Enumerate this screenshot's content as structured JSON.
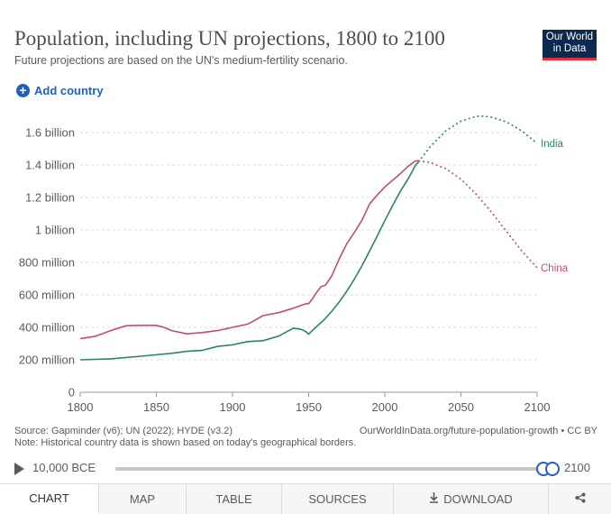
{
  "header": {
    "title": "Population, including UN projections, 1800 to 2100",
    "subtitle": "Future projections are based on the UN's medium-fertility scenario.",
    "logo_line1": "Our World",
    "logo_line2": "in Data"
  },
  "controls": {
    "add_country": "Add country",
    "add_icon": "plus-circle-icon"
  },
  "chart_data": {
    "type": "line",
    "title": "Population, including UN projections, 1800 to 2100",
    "xlabel": "",
    "ylabel": "",
    "xlim": [
      1800,
      2100
    ],
    "ylim": [
      0,
      1700
    ],
    "unit": "million",
    "grid": true,
    "x_ticks": [
      {
        "value": 1800,
        "label": "1800"
      },
      {
        "value": 1850,
        "label": "1850"
      },
      {
        "value": 1900,
        "label": "1900"
      },
      {
        "value": 1950,
        "label": "1950"
      },
      {
        "value": 2000,
        "label": "2000"
      },
      {
        "value": 2050,
        "label": "2050"
      },
      {
        "value": 2100,
        "label": "2100"
      }
    ],
    "y_ticks": [
      {
        "value": 0,
        "label": "0"
      },
      {
        "value": 200,
        "label": "200 million"
      },
      {
        "value": 400,
        "label": "400 million"
      },
      {
        "value": 600,
        "label": "600 million"
      },
      {
        "value": 800,
        "label": "800 million"
      },
      {
        "value": 1000,
        "label": "1 billion"
      },
      {
        "value": 1200,
        "label": "1.2 billion"
      },
      {
        "value": 1400,
        "label": "1.4 billion"
      },
      {
        "value": 1600,
        "label": "1.6 billion"
      }
    ],
    "series": [
      {
        "name": "China",
        "color": "#c15065",
        "historical": [
          [
            1800,
            330
          ],
          [
            1810,
            345
          ],
          [
            1820,
            380
          ],
          [
            1830,
            410
          ],
          [
            1840,
            412
          ],
          [
            1850,
            412
          ],
          [
            1855,
            400
          ],
          [
            1860,
            380
          ],
          [
            1870,
            360
          ],
          [
            1880,
            368
          ],
          [
            1890,
            380
          ],
          [
            1900,
            400
          ],
          [
            1910,
            420
          ],
          [
            1913,
            435
          ],
          [
            1920,
            472
          ],
          [
            1930,
            490
          ],
          [
            1940,
            518
          ],
          [
            1948,
            545
          ],
          [
            1950,
            546
          ],
          [
            1952,
            570
          ],
          [
            1955,
            612
          ],
          [
            1958,
            650
          ],
          [
            1961,
            660
          ],
          [
            1965,
            715
          ],
          [
            1970,
            820
          ],
          [
            1975,
            915
          ],
          [
            1980,
            985
          ],
          [
            1985,
            1060
          ],
          [
            1990,
            1160
          ],
          [
            1995,
            1215
          ],
          [
            2000,
            1265
          ],
          [
            2005,
            1305
          ],
          [
            2010,
            1345
          ],
          [
            2015,
            1390
          ],
          [
            2020,
            1425
          ],
          [
            2022,
            1426
          ]
        ],
        "projection": [
          [
            2022,
            1426
          ],
          [
            2030,
            1415
          ],
          [
            2040,
            1378
          ],
          [
            2050,
            1313
          ],
          [
            2060,
            1220
          ],
          [
            2070,
            1110
          ],
          [
            2080,
            990
          ],
          [
            2090,
            870
          ],
          [
            2100,
            767
          ]
        ]
      },
      {
        "name": "India",
        "color": "#2c8465",
        "historical": [
          [
            1800,
            200
          ],
          [
            1820,
            206
          ],
          [
            1840,
            222
          ],
          [
            1860,
            240
          ],
          [
            1870,
            252
          ],
          [
            1880,
            258
          ],
          [
            1890,
            282
          ],
          [
            1900,
            292
          ],
          [
            1910,
            312
          ],
          [
            1920,
            318
          ],
          [
            1930,
            345
          ],
          [
            1935,
            370
          ],
          [
            1940,
            395
          ],
          [
            1945,
            388
          ],
          [
            1948,
            375
          ],
          [
            1950,
            358
          ],
          [
            1951,
            368
          ],
          [
            1955,
            403
          ],
          [
            1960,
            445
          ],
          [
            1965,
            497
          ],
          [
            1970,
            555
          ],
          [
            1975,
            623
          ],
          [
            1980,
            697
          ],
          [
            1985,
            780
          ],
          [
            1990,
            870
          ],
          [
            1995,
            963
          ],
          [
            2000,
            1057
          ],
          [
            2005,
            1147
          ],
          [
            2010,
            1235
          ],
          [
            2015,
            1310
          ],
          [
            2020,
            1396
          ],
          [
            2022,
            1417
          ]
        ],
        "projection": [
          [
            2022,
            1417
          ],
          [
            2030,
            1515
          ],
          [
            2040,
            1610
          ],
          [
            2050,
            1670
          ],
          [
            2060,
            1700
          ],
          [
            2065,
            1701
          ],
          [
            2070,
            1695
          ],
          [
            2080,
            1665
          ],
          [
            2090,
            1610
          ],
          [
            2100,
            1533
          ]
        ]
      }
    ]
  },
  "footer": {
    "source": "Source: Gapminder (v6); UN (2022); HYDE (v3.2)",
    "note": "Note: Historical country data is shown based on today's geographical borders.",
    "license": "OurWorldInData.org/future-population-growth • CC BY"
  },
  "timeline": {
    "start_label": "10,000 BCE",
    "end_label": "2100",
    "start_pos": 1.0,
    "end_pos": 1.0,
    "play_icon": "play-icon"
  },
  "tabs": [
    {
      "label": "CHART",
      "active": true
    },
    {
      "label": "MAP"
    },
    {
      "label": "TABLE"
    },
    {
      "label": "SOURCES"
    },
    {
      "label": "DOWNLOAD",
      "icon": "download-icon"
    },
    {
      "label": "",
      "icon": "share-icon"
    }
  ]
}
